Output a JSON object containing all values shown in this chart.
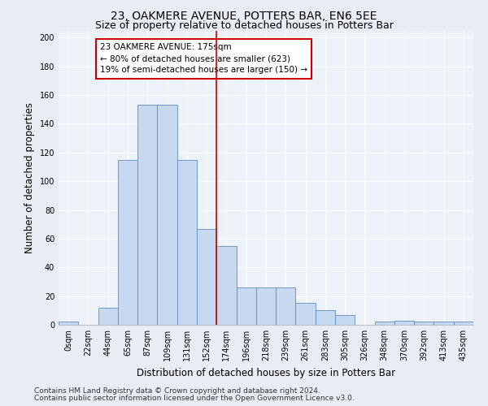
{
  "title": "23, OAKMERE AVENUE, POTTERS BAR, EN6 5EE",
  "subtitle": "Size of property relative to detached houses in Potters Bar",
  "xlabel": "Distribution of detached houses by size in Potters Bar",
  "ylabel": "Number of detached properties",
  "bin_labels": [
    "0sqm",
    "22sqm",
    "44sqm",
    "65sqm",
    "87sqm",
    "109sqm",
    "131sqm",
    "152sqm",
    "174sqm",
    "196sqm",
    "218sqm",
    "239sqm",
    "261sqm",
    "283sqm",
    "305sqm",
    "326sqm",
    "348sqm",
    "370sqm",
    "392sqm",
    "413sqm",
    "435sqm"
  ],
  "bar_heights": [
    2,
    0,
    12,
    115,
    153,
    153,
    115,
    67,
    55,
    26,
    26,
    26,
    15,
    10,
    7,
    0,
    2,
    3,
    2,
    2,
    2
  ],
  "bar_color": "#c6d9f1",
  "bar_edge_color": "#5b8ec4",
  "vline_color": "#cc0000",
  "annotation_text": "23 OAKMERE AVENUE: 175sqm\n← 80% of detached houses are smaller (623)\n19% of semi-detached houses are larger (150) →",
  "annotation_box_color": "#cc0000",
  "ylim": [
    0,
    205
  ],
  "yticks": [
    0,
    20,
    40,
    60,
    80,
    100,
    120,
    140,
    160,
    180,
    200
  ],
  "footer_line1": "Contains HM Land Registry data © Crown copyright and database right 2024.",
  "footer_line2": "Contains public sector information licensed under the Open Government Licence v3.0.",
  "bg_color": "#e8edf4",
  "plot_bg_color": "#edf1f8",
  "title_fontsize": 10,
  "subtitle_fontsize": 9,
  "axis_label_fontsize": 8.5,
  "tick_fontsize": 7,
  "footer_fontsize": 6.5,
  "annotation_fontsize": 7.5
}
